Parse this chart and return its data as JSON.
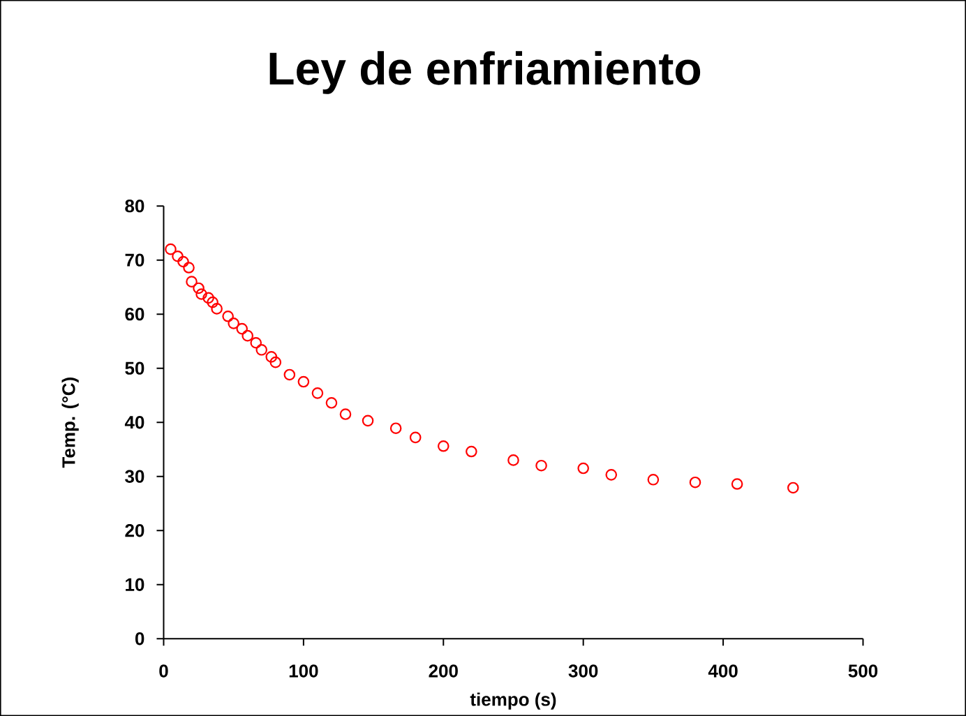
{
  "chart_data": {
    "type": "scatter",
    "title": "Ley de enfriamiento",
    "xlabel": "tiempo (s)",
    "ylabel": "Temp. (°C)",
    "x": [
      5,
      10,
      14,
      18,
      20,
      25,
      27,
      32,
      35,
      38,
      46,
      50,
      56,
      60,
      66,
      70,
      77,
      80,
      90,
      100,
      110,
      120,
      130,
      146,
      166,
      180,
      200,
      220,
      250,
      270,
      300,
      320,
      350,
      380,
      410,
      450
    ],
    "series": [
      {
        "color": "#ff0000",
        "values": [
          72,
          70.7,
          69.7,
          68.6,
          66,
          64.8,
          63.7,
          63,
          62.2,
          61,
          59.6,
          58.3,
          57.3,
          56,
          54.7,
          53.4,
          52.1,
          51.1,
          48.8,
          47.5,
          45.4,
          43.6,
          41.5,
          40.3,
          38.9,
          37.2,
          35.6,
          34.6,
          33,
          32,
          31.5,
          30.3,
          29.4,
          28.9,
          28.6,
          27.9
        ]
      }
    ],
    "xlim": [
      0,
      500
    ],
    "xticks": [
      0,
      100,
      200,
      300,
      400,
      500
    ],
    "ylim": [
      0,
      80
    ],
    "yticks": [
      0,
      10,
      20,
      30,
      40,
      50,
      60,
      70,
      80
    ],
    "marker": "circle"
  }
}
